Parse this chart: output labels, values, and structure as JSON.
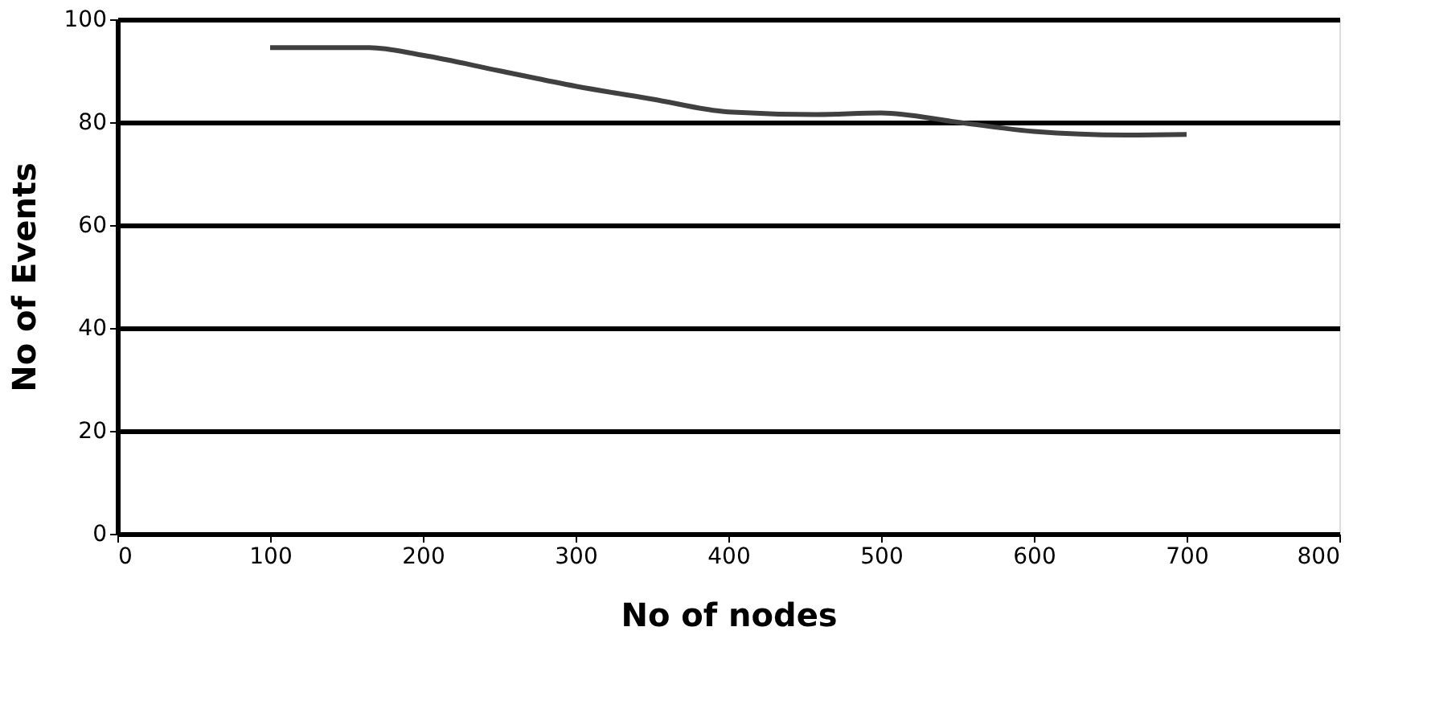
{
  "chart_data": {
    "type": "line",
    "xlabel": "No of nodes",
    "ylabel": "No of Events",
    "x": [
      100,
      165,
      200,
      250,
      300,
      350,
      400,
      457,
      500,
      550,
      600,
      660,
      700
    ],
    "series": [
      {
        "color": "#404040",
        "values": [
          94.5,
          94.5,
          93,
          90,
          87,
          84.5,
          82,
          81.5,
          81.8,
          80,
          78.2,
          77.5,
          77.6
        ]
      }
    ],
    "xlim": [
      0,
      800
    ],
    "xticks": [
      0,
      100,
      200,
      300,
      400,
      500,
      600,
      700,
      800
    ],
    "ylim": [
      0,
      100
    ],
    "yticks": [
      0,
      20,
      40,
      60,
      80,
      100
    ],
    "grid": "y",
    "marker": "none",
    "line_style": "solid"
  }
}
